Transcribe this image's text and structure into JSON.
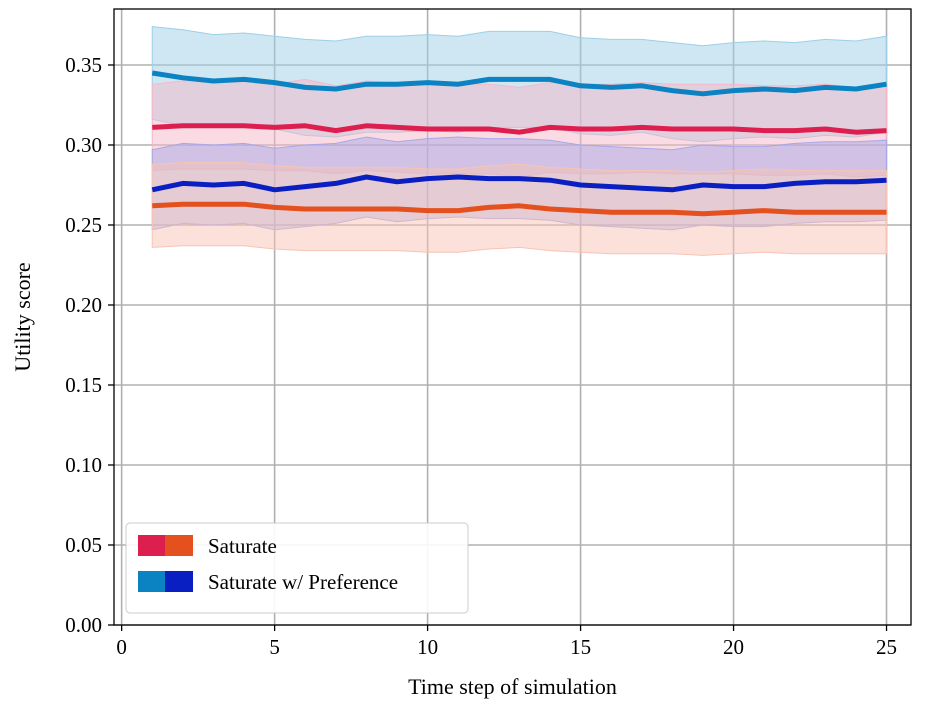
{
  "chart_data": {
    "type": "line",
    "xlabel": "Time step of simulation",
    "ylabel": "Utility score",
    "xlim": [
      -0.25,
      25.8
    ],
    "ylim": [
      0.0,
      0.385
    ],
    "xticks": [
      0,
      5,
      10,
      15,
      20,
      25
    ],
    "xtick_labels": [
      "0",
      "5",
      "10",
      "15",
      "20",
      "25"
    ],
    "yticks": [
      0.0,
      0.05,
      0.1,
      0.15,
      0.2,
      0.25,
      0.3,
      0.35
    ],
    "ytick_labels": [
      "0.00",
      "0.05",
      "0.10",
      "0.15",
      "0.20",
      "0.25",
      "0.30",
      "0.35"
    ],
    "grid": true,
    "legend_position": "lower-left",
    "x": [
      1,
      2,
      3,
      4,
      5,
      6,
      7,
      8,
      9,
      10,
      11,
      12,
      13,
      14,
      15,
      16,
      17,
      18,
      19,
      20,
      21,
      22,
      23,
      24,
      25
    ],
    "series": [
      {
        "color": "#0b82c2",
        "band_color": "#9dcfe8",
        "values": [
          0.345,
          0.342,
          0.34,
          0.341,
          0.339,
          0.336,
          0.335,
          0.338,
          0.338,
          0.339,
          0.338,
          0.341,
          0.341,
          0.341,
          0.337,
          0.336,
          0.337,
          0.334,
          0.332,
          0.334,
          0.335,
          0.334,
          0.336,
          0.335,
          0.338
        ],
        "upper": [
          0.374,
          0.372,
          0.369,
          0.37,
          0.368,
          0.366,
          0.365,
          0.368,
          0.368,
          0.369,
          0.368,
          0.371,
          0.371,
          0.371,
          0.367,
          0.366,
          0.366,
          0.364,
          0.362,
          0.364,
          0.365,
          0.364,
          0.366,
          0.365,
          0.368
        ],
        "lower": [
          0.316,
          0.312,
          0.311,
          0.312,
          0.31,
          0.306,
          0.305,
          0.308,
          0.308,
          0.309,
          0.308,
          0.311,
          0.311,
          0.311,
          0.307,
          0.306,
          0.308,
          0.304,
          0.302,
          0.304,
          0.305,
          0.304,
          0.306,
          0.305,
          0.308
        ]
      },
      {
        "color": "#dc1f4e",
        "band_color": "#f5b8c8",
        "values": [
          0.311,
          0.312,
          0.312,
          0.312,
          0.311,
          0.312,
          0.309,
          0.312,
          0.311,
          0.31,
          0.31,
          0.31,
          0.308,
          0.311,
          0.31,
          0.31,
          0.311,
          0.31,
          0.31,
          0.31,
          0.309,
          0.309,
          0.31,
          0.308,
          0.309
        ],
        "upper": [
          0.338,
          0.34,
          0.34,
          0.34,
          0.338,
          0.341,
          0.337,
          0.34,
          0.339,
          0.338,
          0.338,
          0.338,
          0.336,
          0.339,
          0.338,
          0.338,
          0.339,
          0.338,
          0.338,
          0.338,
          0.337,
          0.337,
          0.338,
          0.336,
          0.337
        ],
        "lower": [
          0.284,
          0.285,
          0.285,
          0.285,
          0.284,
          0.284,
          0.282,
          0.284,
          0.283,
          0.282,
          0.282,
          0.282,
          0.28,
          0.283,
          0.282,
          0.282,
          0.283,
          0.282,
          0.282,
          0.282,
          0.281,
          0.281,
          0.282,
          0.28,
          0.281
        ]
      },
      {
        "color": "#0a1fc2",
        "band_color": "#a8a8e8",
        "values": [
          0.272,
          0.276,
          0.275,
          0.276,
          0.272,
          0.274,
          0.276,
          0.28,
          0.277,
          0.279,
          0.28,
          0.279,
          0.279,
          0.278,
          0.275,
          0.274,
          0.273,
          0.272,
          0.275,
          0.274,
          0.274,
          0.276,
          0.277,
          0.277,
          0.278
        ],
        "upper": [
          0.297,
          0.301,
          0.3,
          0.301,
          0.298,
          0.3,
          0.301,
          0.305,
          0.302,
          0.304,
          0.305,
          0.304,
          0.304,
          0.303,
          0.3,
          0.299,
          0.298,
          0.297,
          0.3,
          0.299,
          0.299,
          0.301,
          0.302,
          0.302,
          0.303
        ],
        "lower": [
          0.247,
          0.251,
          0.25,
          0.251,
          0.247,
          0.249,
          0.251,
          0.255,
          0.252,
          0.254,
          0.255,
          0.254,
          0.254,
          0.253,
          0.25,
          0.249,
          0.248,
          0.247,
          0.25,
          0.249,
          0.249,
          0.251,
          0.252,
          0.252,
          0.253
        ]
      },
      {
        "color": "#e4501e",
        "band_color": "#f7c4b4",
        "values": [
          0.262,
          0.263,
          0.263,
          0.263,
          0.261,
          0.26,
          0.26,
          0.26,
          0.26,
          0.259,
          0.259,
          0.261,
          0.262,
          0.26,
          0.259,
          0.258,
          0.258,
          0.258,
          0.257,
          0.258,
          0.259,
          0.258,
          0.258,
          0.258,
          0.258
        ],
        "upper": [
          0.288,
          0.289,
          0.289,
          0.289,
          0.287,
          0.286,
          0.286,
          0.286,
          0.286,
          0.285,
          0.285,
          0.287,
          0.288,
          0.286,
          0.285,
          0.284,
          0.284,
          0.284,
          0.283,
          0.284,
          0.285,
          0.284,
          0.284,
          0.284,
          0.284
        ],
        "lower": [
          0.236,
          0.237,
          0.237,
          0.237,
          0.235,
          0.234,
          0.234,
          0.234,
          0.234,
          0.233,
          0.233,
          0.235,
          0.236,
          0.234,
          0.233,
          0.232,
          0.232,
          0.232,
          0.231,
          0.232,
          0.233,
          0.232,
          0.232,
          0.232,
          0.232
        ]
      }
    ],
    "legend": [
      {
        "label": "Saturate",
        "swatch_colors": [
          "#dc1f4e",
          "#e4501e"
        ]
      },
      {
        "label": "Saturate w/ Preference",
        "swatch_colors": [
          "#0b82c2",
          "#0a1fc2"
        ]
      }
    ]
  }
}
